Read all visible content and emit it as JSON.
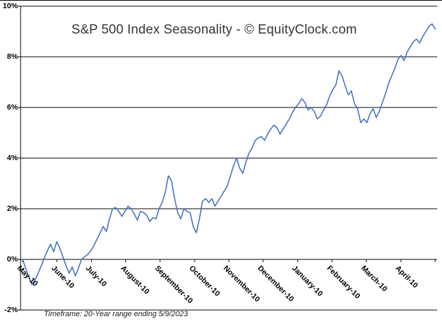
{
  "chart_data": {
    "type": "line",
    "title": "S&P 500 Index Seasonality - © EquityClock.com",
    "footer_note": "Timeframe: 20-Year range ending 5/9/2023",
    "line_color": "#4472C4",
    "grid": true,
    "legend_position": "none",
    "ylim": [
      -2,
      10
    ],
    "y_tick_step": 2,
    "y_tick_labels": [
      "10%",
      "8%",
      "6%",
      "4%",
      "2%",
      "0%",
      "-2%"
    ],
    "x_tick_labels": [
      "May-10",
      "June-10",
      "July-10",
      "August-10",
      "September-10",
      "October-10",
      "November-10",
      "December-10",
      "January-10",
      "February-10",
      "March-10",
      "April-10"
    ],
    "values": [
      0.0,
      -0.35,
      -0.7,
      -1.0,
      -0.8,
      -0.55,
      -0.25,
      0.05,
      0.35,
      0.6,
      0.3,
      0.7,
      0.45,
      0.1,
      -0.25,
      -0.55,
      -0.3,
      -0.65,
      -0.35,
      0.0,
      0.1,
      0.2,
      0.35,
      0.55,
      0.8,
      1.05,
      1.3,
      1.1,
      1.6,
      2.0,
      2.05,
      1.9,
      1.7,
      1.9,
      2.1,
      2.0,
      1.8,
      1.55,
      1.9,
      1.85,
      1.75,
      1.5,
      1.65,
      1.6,
      2.0,
      2.25,
      2.65,
      3.3,
      3.1,
      2.4,
      1.85,
      1.6,
      2.0,
      1.9,
      1.85,
      1.3,
      1.05,
      1.6,
      2.3,
      2.4,
      2.25,
      2.4,
      2.1,
      2.3,
      2.5,
      2.7,
      2.9,
      3.3,
      3.7,
      4.0,
      3.6,
      3.4,
      3.85,
      4.2,
      4.4,
      4.7,
      4.8,
      4.85,
      4.7,
      4.95,
      5.15,
      5.3,
      5.2,
      4.95,
      5.15,
      5.35,
      5.55,
      5.8,
      6.0,
      6.15,
      6.35,
      6.2,
      5.9,
      6.0,
      5.85,
      5.55,
      5.65,
      5.9,
      6.1,
      6.45,
      6.7,
      6.9,
      7.45,
      7.25,
      6.85,
      6.5,
      6.65,
      6.15,
      5.95,
      5.4,
      5.55,
      5.4,
      5.75,
      5.95,
      5.6,
      5.85,
      6.2,
      6.55,
      6.95,
      7.25,
      7.55,
      7.9,
      8.05,
      7.85,
      8.2,
      8.4,
      8.6,
      8.7,
      8.55,
      8.8,
      9.0,
      9.2,
      9.3,
      9.1
    ]
  }
}
